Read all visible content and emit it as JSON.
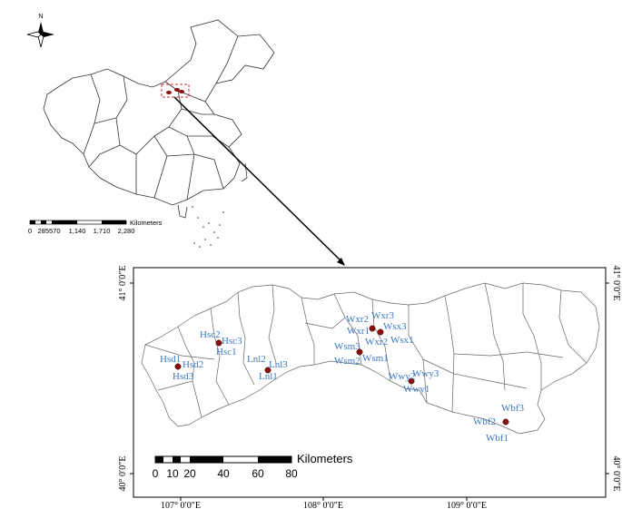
{
  "north_arrow": {
    "label": "N"
  },
  "overview_scale": {
    "ticks": [
      "0",
      "285570",
      "1,140",
      "1,710",
      "2,280"
    ],
    "unit": "Kilometers"
  },
  "detail_scale": {
    "ticks": [
      "0",
      "10",
      "20",
      "40",
      "60",
      "80"
    ],
    "unit": "Kilometers"
  },
  "longitude_labels": [
    "107° 0′0″E",
    "108° 0′0″E",
    "109° 0′0″E"
  ],
  "latitude_labels": [
    "41° 0′0″E",
    "40° 0′0″E"
  ],
  "latitude_labels_right": [
    "41° 0′0″E",
    "40° 0′0″E"
  ],
  "sites": [
    {
      "label": "Hsc2"
    },
    {
      "label": "Hsc3"
    },
    {
      "label": "Hsc1"
    },
    {
      "label": "Hsd1"
    },
    {
      "label": "Hsd2"
    },
    {
      "label": "Hsd3"
    },
    {
      "label": "Lnl2"
    },
    {
      "label": "Lnl3"
    },
    {
      "label": "Lnl1"
    },
    {
      "label": "Wxr2"
    },
    {
      "label": "Wxr3"
    },
    {
      "label": "Wxr1"
    },
    {
      "label": "Wsx3"
    },
    {
      "label": "Wxr2"
    },
    {
      "label": "Wsx1"
    },
    {
      "label": "Wsm3"
    },
    {
      "label": "Wsm2"
    },
    {
      "label": "Wsm1"
    },
    {
      "label": "Wwy2"
    },
    {
      "label": "Wwy3"
    },
    {
      "label": "Wwy1"
    },
    {
      "label": "Wbf3"
    },
    {
      "label": "Wbf2"
    },
    {
      "label": "Wbf1"
    }
  ],
  "colors": {
    "site_label": "#3a78c4",
    "site_marker": "#8b0f0f",
    "highlight_box": "#d42a2a"
  }
}
